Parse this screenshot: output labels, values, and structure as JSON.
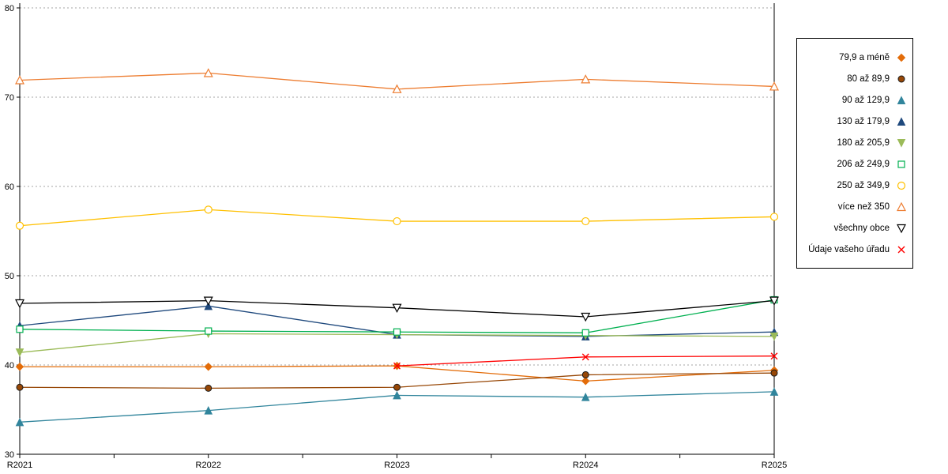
{
  "chart_data": {
    "type": "line",
    "title": "",
    "xlabel": "",
    "ylabel": "",
    "categories": [
      "R2021",
      "R2022",
      "R2023",
      "R2024",
      "R2025"
    ],
    "ylim": [
      30,
      80
    ],
    "yticks": [
      30,
      40,
      50,
      60,
      70,
      80
    ],
    "grid": "horizontal-dotted",
    "legend_position": "right",
    "series": [
      {
        "name": "79,9 a méně",
        "color": "#E36C09",
        "marker": "diamond-filled",
        "values": [
          39.8,
          39.8,
          39.9,
          38.2,
          39.4
        ]
      },
      {
        "name": "80 až 89,9",
        "color": "#974706",
        "marker": "circle-filled",
        "values": [
          37.5,
          37.4,
          37.5,
          38.9,
          39.1
        ]
      },
      {
        "name": "90 až 129,9",
        "color": "#31859C",
        "marker": "triangle-up-filled",
        "values": [
          33.6,
          34.9,
          36.6,
          36.4,
          37.0
        ]
      },
      {
        "name": "130 až 179,9",
        "color": "#1F497D",
        "marker": "triangle-up-filled",
        "values": [
          44.4,
          46.6,
          43.4,
          43.2,
          43.7
        ]
      },
      {
        "name": "180 až 205,9",
        "color": "#9BBB59",
        "marker": "triangle-down-filled",
        "values": [
          41.4,
          43.5,
          43.4,
          43.3,
          43.2
        ]
      },
      {
        "name": "206 až 249,9",
        "color": "#00B050",
        "marker": "square-open",
        "values": [
          44.0,
          43.8,
          43.7,
          43.6,
          47.3
        ]
      },
      {
        "name": "250 až 349,9",
        "color": "#FFC000",
        "marker": "circle-open",
        "values": [
          55.6,
          57.4,
          56.1,
          56.1,
          56.6
        ]
      },
      {
        "name": "více než 350",
        "color": "#ED7D31",
        "marker": "triangle-up-open",
        "values": [
          71.9,
          72.7,
          70.9,
          72.0,
          71.2
        ]
      },
      {
        "name": "všechny obce",
        "color": "#000000",
        "marker": "triangle-down-open",
        "values": [
          46.9,
          47.2,
          46.4,
          45.4,
          47.2
        ]
      },
      {
        "name": "Údaje vašeho úřadu",
        "color": "#FF0000",
        "marker": "x",
        "values": [
          null,
          null,
          39.9,
          40.9,
          41.0
        ]
      }
    ]
  }
}
